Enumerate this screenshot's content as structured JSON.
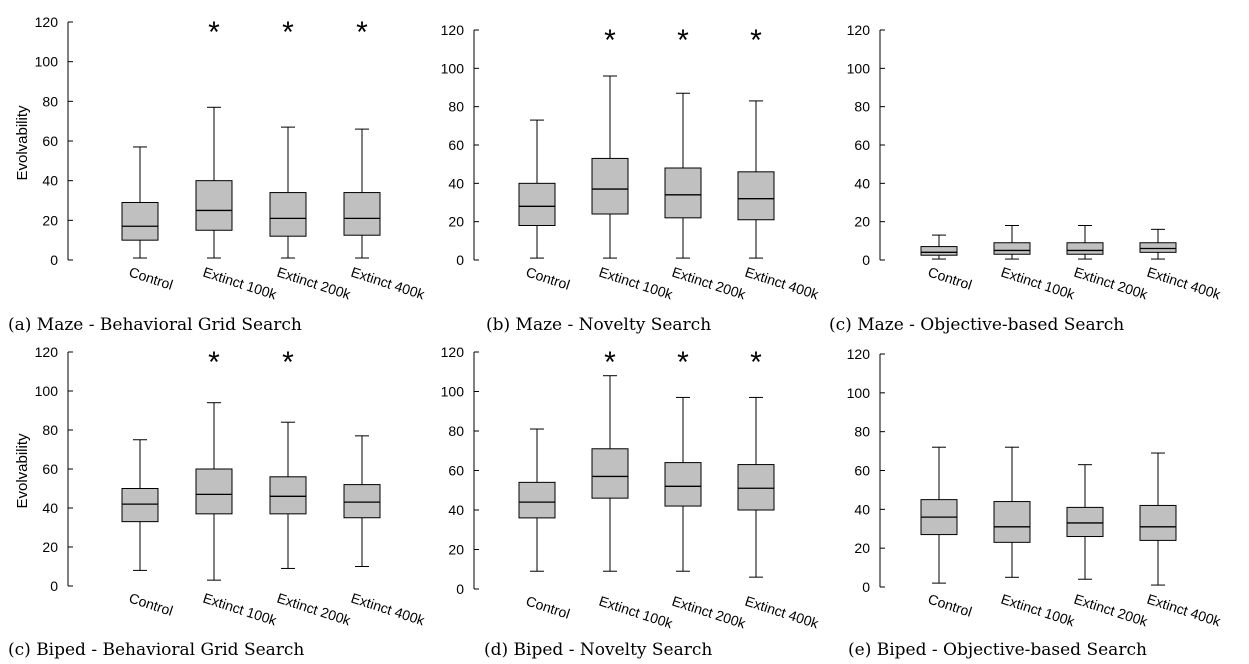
{
  "chart_data": [
    {
      "type": "box",
      "caption": "(a) Maze - Behavioral Grid Search",
      "ylabel": "Evolvability",
      "ylim": [
        0,
        120
      ],
      "yticks": [
        "0",
        "20",
        "40",
        "60",
        "80",
        "100",
        "120"
      ],
      "categories": [
        "Control",
        "Extinct 100k",
        "Extinct 200k",
        "Extinct 400k"
      ],
      "boxes": [
        {
          "min": 1,
          "q1": 10,
          "median": 17,
          "q3": 29,
          "max": 57
        },
        {
          "min": 1,
          "q1": 15,
          "median": 25,
          "q3": 40,
          "max": 77
        },
        {
          "min": 1,
          "q1": 12,
          "median": 21,
          "q3": 34,
          "max": 67
        },
        {
          "min": 1,
          "q1": 12.5,
          "median": 21,
          "q3": 34,
          "max": 66
        }
      ],
      "significance": [
        "",
        "*",
        "*",
        "*"
      ]
    },
    {
      "type": "box",
      "caption": "(b) Maze - Novelty Search",
      "ylabel": "",
      "ylim": [
        0,
        120
      ],
      "yticks": [
        "0",
        "20",
        "40",
        "60",
        "80",
        "100",
        "120"
      ],
      "categories": [
        "Control",
        "Extinct 100k",
        "Extinct 200k",
        "Extinct 400k"
      ],
      "boxes": [
        {
          "min": 1,
          "q1": 18,
          "median": 28,
          "q3": 40,
          "max": 73
        },
        {
          "min": 1,
          "q1": 24,
          "median": 37,
          "q3": 53,
          "max": 96
        },
        {
          "min": 1,
          "q1": 22,
          "median": 34,
          "q3": 48,
          "max": 87
        },
        {
          "min": 1,
          "q1": 21,
          "median": 32,
          "q3": 46,
          "max": 83
        }
      ],
      "significance": [
        "",
        "*",
        "*",
        "*"
      ]
    },
    {
      "type": "box",
      "caption": "(c) Maze - Objective-based Search",
      "ylabel": "",
      "ylim": [
        0,
        120
      ],
      "yticks": [
        "0",
        "20",
        "40",
        "60",
        "80",
        "100",
        "120"
      ],
      "categories": [
        "Control",
        "Extinct 100k",
        "Extinct 200k",
        "Extinct 400k"
      ],
      "boxes": [
        {
          "min": 0.5,
          "q1": 2.5,
          "median": 4,
          "q3": 7,
          "max": 13
        },
        {
          "min": 0.5,
          "q1": 3,
          "median": 5,
          "q3": 9,
          "max": 18
        },
        {
          "min": 0.5,
          "q1": 3,
          "median": 5,
          "q3": 9,
          "max": 18
        },
        {
          "min": 0.5,
          "q1": 4,
          "median": 6,
          "q3": 9,
          "max": 16
        }
      ],
      "significance": [
        "",
        "",
        "",
        ""
      ]
    },
    {
      "type": "box",
      "caption": "(c) Biped - Behavioral Grid Search",
      "ylabel": "Evolvability",
      "ylim": [
        0,
        120
      ],
      "yticks": [
        "0",
        "20",
        "40",
        "60",
        "80",
        "100",
        "120"
      ],
      "categories": [
        "Control",
        "Extinct 100k",
        "Extinct 200k",
        "Extinct 400k"
      ],
      "boxes": [
        {
          "min": 8,
          "q1": 33,
          "median": 42,
          "q3": 50,
          "max": 75
        },
        {
          "min": 3,
          "q1": 37,
          "median": 47,
          "q3": 60,
          "max": 94
        },
        {
          "min": 9,
          "q1": 37,
          "median": 46,
          "q3": 56,
          "max": 84
        },
        {
          "min": 10,
          "q1": 35,
          "median": 43,
          "q3": 52,
          "max": 77
        }
      ],
      "significance": [
        "",
        "*",
        "*",
        ""
      ]
    },
    {
      "type": "box",
      "caption": "(d) Biped - Novelty Search",
      "ylabel": "",
      "ylim": [
        0,
        120
      ],
      "yticks": [
        "0",
        "20",
        "40",
        "60",
        "80",
        "100",
        "120"
      ],
      "categories": [
        "Control",
        "Extinct 100k",
        "Extinct 200k",
        "Extinct 400k"
      ],
      "boxes": [
        {
          "min": 9,
          "q1": 36,
          "median": 44,
          "q3": 54,
          "max": 81
        },
        {
          "min": 9,
          "q1": 46,
          "median": 57,
          "q3": 71,
          "max": 108
        },
        {
          "min": 9,
          "q1": 42,
          "median": 52,
          "q3": 64,
          "max": 97
        },
        {
          "min": 6,
          "q1": 40,
          "median": 51,
          "q3": 63,
          "max": 97
        }
      ],
      "significance": [
        "",
        "*",
        "*",
        "*"
      ]
    },
    {
      "type": "box",
      "caption": "(e) Biped - Objective-based Search",
      "ylabel": "",
      "ylim": [
        0,
        120
      ],
      "yticks": [
        "0",
        "20",
        "40",
        "60",
        "80",
        "100",
        "120"
      ],
      "categories": [
        "Control",
        "Extinct 100k",
        "Extinct 200k",
        "Extinct 400k"
      ],
      "boxes": [
        {
          "min": 2,
          "q1": 27,
          "median": 36,
          "q3": 45,
          "max": 72
        },
        {
          "min": 5,
          "q1": 23,
          "median": 31,
          "q3": 44,
          "max": 72
        },
        {
          "min": 4,
          "q1": 26,
          "median": 33,
          "q3": 41,
          "max": 63
        },
        {
          "min": 1,
          "q1": 24,
          "median": 31,
          "q3": 42,
          "max": 69
        }
      ],
      "significance": [
        "",
        "",
        "",
        ""
      ]
    }
  ]
}
